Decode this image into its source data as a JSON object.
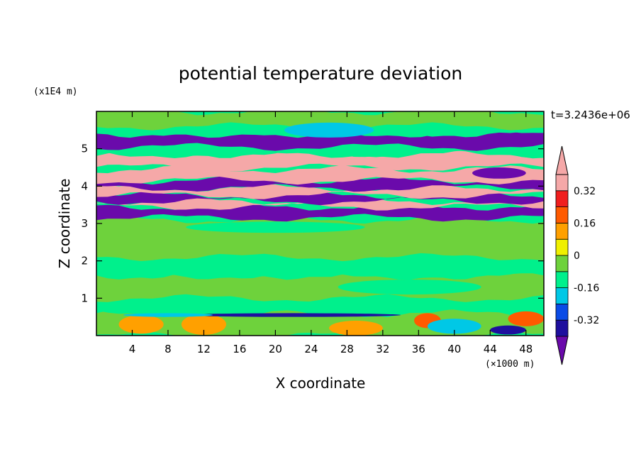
{
  "chart_data": {
    "type": "heatmap",
    "title": "potential temperature deviation",
    "xlabel": "X coordinate",
    "ylabel": "Z coordinate",
    "x_unit": "(×1000 m)",
    "y_unit": "(x1E4 m)",
    "time_label": "t=3.2436e+06",
    "xlim": [
      0,
      50
    ],
    "ylim": [
      0,
      6
    ],
    "x_ticks": [
      "4",
      "8",
      "12",
      "16",
      "20",
      "24",
      "28",
      "32",
      "36",
      "40",
      "44",
      "48"
    ],
    "y_ticks": [
      "1",
      "2",
      "3",
      "4",
      "5"
    ],
    "colorbar": {
      "levels": [
        -0.4,
        -0.32,
        -0.24,
        -0.16,
        -0.08,
        0,
        0.08,
        0.16,
        0.24,
        0.32,
        0.4
      ],
      "labels": [
        "0.32",
        "0.16",
        "0",
        "-0.16",
        "-0.32"
      ],
      "label_values": [
        0.32,
        0.16,
        0,
        -0.16,
        -0.32
      ],
      "colors": [
        "#6a0aab",
        "#1e0f9e",
        "#0a4be6",
        "#00c8e6",
        "#00f08c",
        "#6ed23c",
        "#f0f000",
        "#ffa000",
        "#ff5a00",
        "#f01e1e",
        "#f5a8a8"
      ]
    },
    "bands": [
      {
        "y0": 0,
        "y1": 0.6,
        "color": "#6ed23c"
      },
      {
        "y0": 0.6,
        "y1": 1.0,
        "color": "#00f08c"
      },
      {
        "y0": 1.0,
        "y1": 1.6,
        "color": "#6ed23c"
      },
      {
        "y0": 1.6,
        "y1": 2.1,
        "color": "#00f08c"
      },
      {
        "y0": 2.1,
        "y1": 3.1,
        "color": "#6ed23c"
      },
      {
        "y0": 3.15,
        "y1": 3.45,
        "color": "#6a0aab"
      },
      {
        "y0": 3.45,
        "y1": 3.6,
        "color": "#f5a8a8"
      },
      {
        "y0": 3.6,
        "y1": 3.75,
        "color": "#6a0aab"
      },
      {
        "y0": 3.75,
        "y1": 3.95,
        "color": "#f5a8a8"
      },
      {
        "y0": 3.95,
        "y1": 4.15,
        "color": "#6a0aab"
      },
      {
        "y0": 4.15,
        "y1": 4.45,
        "color": "#f5a8a8"
      },
      {
        "y0": 4.5,
        "y1": 4.85,
        "color": "#f5a8a8"
      },
      {
        "y0": 4.85,
        "y1": 5.0,
        "color": "#00f08c"
      },
      {
        "y0": 5.05,
        "y1": 5.4,
        "color": "#6a0aab"
      },
      {
        "y0": 5.4,
        "y1": 5.6,
        "color": "#00f08c"
      },
      {
        "y0": 5.6,
        "y1": 6.0,
        "color": "#6ed23c"
      }
    ]
  }
}
